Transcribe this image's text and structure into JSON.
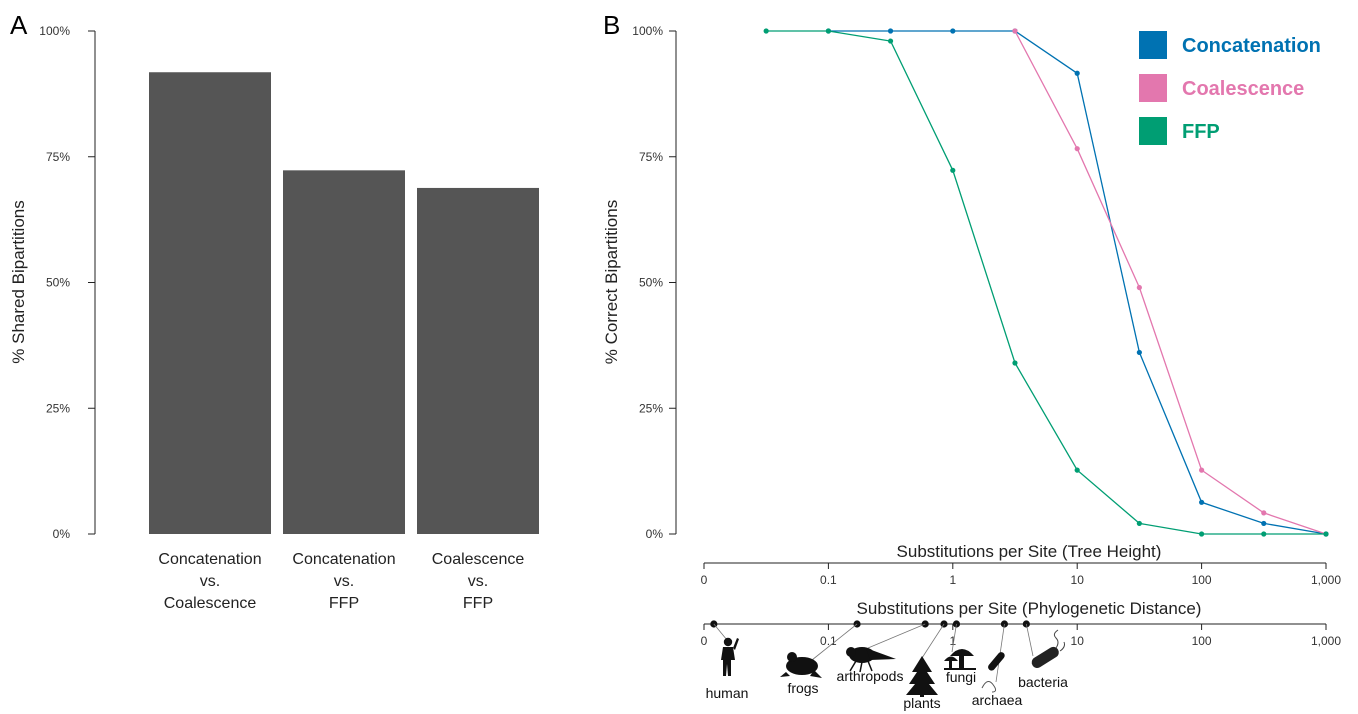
{
  "panels": {
    "a_letter": "A",
    "b_letter": "B"
  },
  "chart_data": [
    {
      "type": "bar",
      "panel": "A",
      "categories": [
        [
          "Concatenation",
          "vs.",
          "Coalescence"
        ],
        [
          "Concatenation",
          "vs.",
          "FFP"
        ],
        [
          "Coalescence",
          "vs.",
          "FFP"
        ]
      ],
      "values": [
        91.8,
        72.3,
        68.8
      ],
      "ylabel": "% Shared Bipartitions",
      "ylim": [
        0,
        100
      ],
      "yticks": [
        "0%",
        "25%",
        "50%",
        "75%",
        "100%"
      ],
      "yticks_values": [
        0,
        25,
        50,
        75,
        100
      ],
      "bar_color": "#555555",
      "grid": false
    },
    {
      "type": "line",
      "panel": "B",
      "ylabel": "% Correct Bipartitions",
      "ylim": [
        0,
        100
      ],
      "yticks": [
        "0%",
        "25%",
        "50%",
        "75%",
        "100%"
      ],
      "yticks_values": [
        0,
        25,
        50,
        75,
        100
      ],
      "x_scale": "log",
      "grid": false,
      "legend_position": "top-right",
      "series": [
        {
          "name": "Concatenation",
          "color": "#0072B2",
          "x": [
            0.1,
            0.316,
            1,
            3.16,
            10,
            31.6,
            100,
            316,
            1000
          ],
          "y": [
            100,
            100,
            100,
            100,
            91.6,
            36.1,
            6.3,
            2.1,
            0
          ]
        },
        {
          "name": "Coalescence",
          "color": "#E377AE",
          "x": [
            3.16,
            10,
            31.6,
            100,
            316,
            1000
          ],
          "y": [
            100,
            76.6,
            49.0,
            12.7,
            4.2,
            0
          ]
        },
        {
          "name": "FFP",
          "color": "#009E73",
          "x": [
            0.0316,
            0.1,
            0.316,
            1,
            3.16,
            10,
            31.6,
            100,
            316,
            1000
          ],
          "y": [
            100,
            100,
            98.0,
            72.3,
            34.0,
            12.7,
            2.1,
            0,
            0,
            0
          ]
        }
      ],
      "axes": [
        {
          "title": "Substitutions per Site (Tree Height)",
          "scale": "log",
          "ticks": [
            "0",
            "0.1",
            "1",
            "10",
            "100",
            "1,000"
          ]
        },
        {
          "title": "Substitutions per Site (Phylogenetic Distance)",
          "scale": "log",
          "ticks": [
            "0",
            "0.1",
            "1",
            "10",
            "100",
            "1,000"
          ],
          "markers": [
            {
              "name": "human",
              "x": 0.012
            },
            {
              "name": "frogs",
              "x": 0.17
            },
            {
              "name": "arthropods",
              "x": 0.6
            },
            {
              "name": "plants",
              "x": 0.85
            },
            {
              "name": "fungi",
              "x": 1.07
            },
            {
              "name": "archaea",
              "x": 2.6
            },
            {
              "name": "bacteria",
              "x": 3.9
            }
          ]
        }
      ]
    }
  ]
}
